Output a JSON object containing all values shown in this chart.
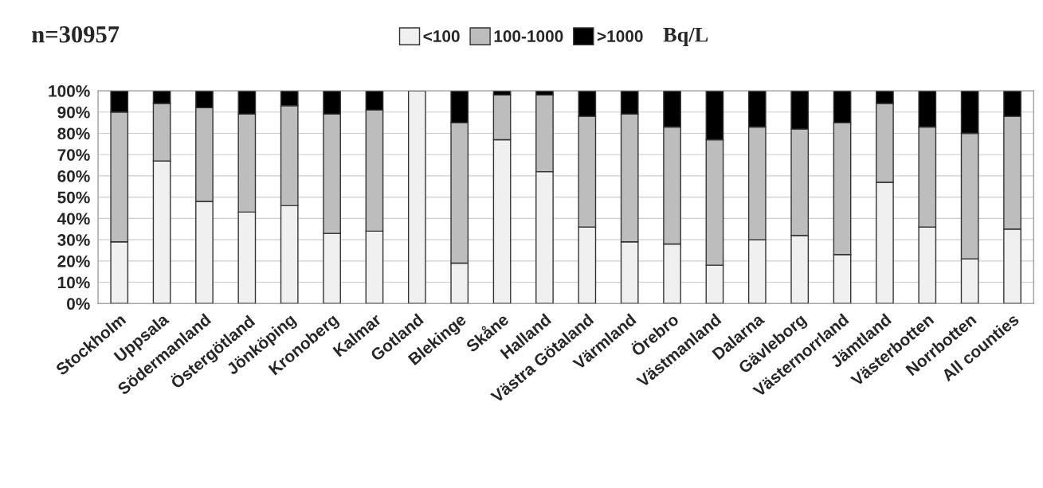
{
  "chart_data": {
    "type": "bar",
    "stacked": true,
    "title": "n=30957",
    "annotations": [
      "Bq/L"
    ],
    "categories": [
      "Stockholm",
      "Uppsala",
      "Södermanland",
      "Östergötland",
      "Jönköping",
      "Kronoberg",
      "Kalmar",
      "Gotland",
      "Blekinge",
      "Skåne",
      "Halland",
      "Västra Götaland",
      "Värmland",
      "Örebro",
      "Västmanland",
      "Dalarna",
      "Gävleborg",
      "Västernorrland",
      "Jämtland",
      "Västerbotten",
      "Norrbotten",
      "All counties"
    ],
    "series": [
      {
        "name": "<100",
        "color": "#f0f0f0",
        "values": [
          29,
          67,
          48,
          43,
          46,
          33,
          34,
          100,
          19,
          77,
          62,
          36,
          29,
          28,
          18,
          30,
          32,
          23,
          57,
          36,
          21,
          35
        ]
      },
      {
        "name": "100-1000",
        "color": "#bdbdbd",
        "values": [
          61,
          27,
          44,
          46,
          47,
          56,
          57,
          0,
          66,
          21,
          36,
          52,
          60,
          55,
          59,
          53,
          50,
          62,
          37,
          47,
          59,
          53
        ]
      },
      {
        "name": ">1000",
        "color": "#000000",
        "values": [
          10,
          6,
          8,
          11,
          7,
          11,
          9,
          0,
          15,
          2,
          2,
          12,
          11,
          17,
          23,
          17,
          18,
          15,
          6,
          17,
          20,
          12
        ]
      }
    ],
    "ylim": [
      0,
      100
    ],
    "yticks": [
      {
        "value": 0,
        "label": "0%"
      },
      {
        "value": 10,
        "label": "10%"
      },
      {
        "value": 20,
        "label": "20%"
      },
      {
        "value": 30,
        "label": "30%"
      },
      {
        "value": 40,
        "label": "40%"
      },
      {
        "value": 50,
        "label": "50%"
      },
      {
        "value": 60,
        "label": "60%"
      },
      {
        "value": 70,
        "label": "70%"
      },
      {
        "value": 80,
        "label": "80%"
      },
      {
        "value": 90,
        "label": "90%"
      },
      {
        "value": 100,
        "label": "100%"
      }
    ],
    "grid": "y",
    "legend": "top"
  }
}
